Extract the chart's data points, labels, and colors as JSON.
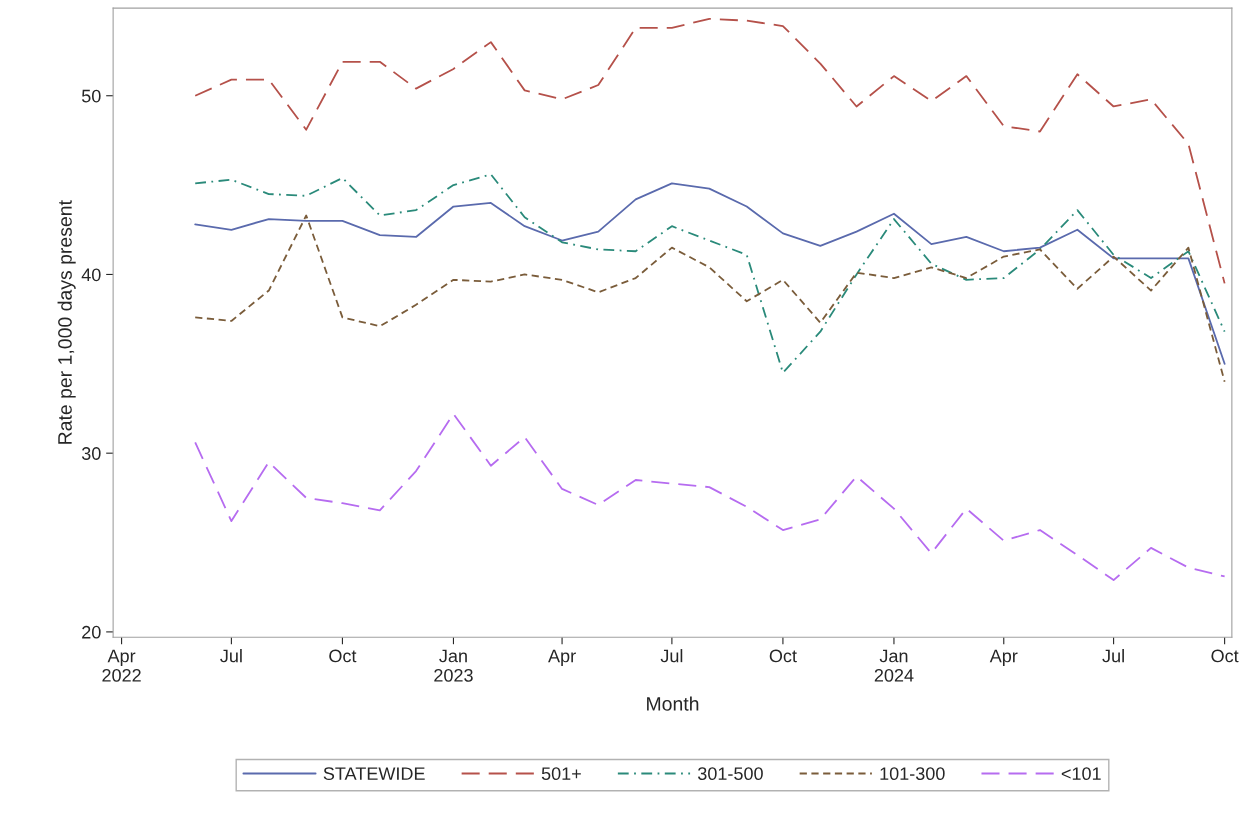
{
  "chart_data": {
    "type": "line",
    "xlabel": "Month",
    "ylabel": "Rate per 1,000 days present",
    "x": [
      "2022-06",
      "2022-07",
      "2022-08",
      "2022-09",
      "2022-10",
      "2022-11",
      "2022-12",
      "2023-01",
      "2023-02",
      "2023-03",
      "2023-04",
      "2023-05",
      "2023-06",
      "2023-07",
      "2023-08",
      "2023-09",
      "2023-10",
      "2023-11",
      "2023-12",
      "2024-01",
      "2024-02",
      "2024-03",
      "2024-04",
      "2024-05",
      "2024-06",
      "2024-07",
      "2024-08",
      "2024-09",
      "2024-10"
    ],
    "series": [
      {
        "name": "STATEWIDE",
        "color": "#5a6aad",
        "line_style": "solid",
        "values": [
          42.8,
          42.5,
          43.1,
          43.0,
          43.0,
          42.2,
          42.1,
          43.8,
          44.0,
          42.7,
          41.9,
          42.4,
          44.2,
          45.1,
          44.8,
          43.8,
          42.3,
          41.6,
          42.4,
          43.4,
          41.7,
          42.1,
          41.3,
          41.5,
          42.5,
          40.9,
          40.9,
          40.9,
          35.0
        ]
      },
      {
        "name": "501+",
        "color": "#b5514a",
        "line_style": "dashed",
        "values": [
          50.0,
          50.9,
          50.9,
          48.1,
          51.9,
          51.9,
          50.4,
          51.5,
          53.0,
          50.3,
          49.8,
          50.6,
          53.8,
          53.8,
          54.3,
          54.2,
          53.9,
          51.8,
          49.4,
          51.1,
          49.7,
          51.1,
          48.3,
          48.0,
          51.2,
          49.4,
          49.8,
          47.3,
          39.5
        ]
      },
      {
        "name": "301-500",
        "color": "#2a8a7a",
        "line_style": "dashdot",
        "values": [
          45.1,
          45.3,
          44.5,
          44.4,
          45.4,
          43.3,
          43.6,
          45.0,
          45.6,
          43.2,
          41.8,
          41.4,
          41.3,
          42.7,
          41.9,
          41.1,
          34.5,
          36.8,
          40.0,
          43.1,
          40.6,
          39.7,
          39.8,
          41.4,
          43.6,
          41.1,
          39.8,
          41.3,
          36.8
        ]
      },
      {
        "name": "101-300",
        "color": "#7a5c3a",
        "line_style": "dotted",
        "values": [
          37.6,
          37.4,
          39.1,
          43.3,
          37.6,
          37.1,
          38.3,
          39.7,
          39.6,
          40.0,
          39.7,
          39.0,
          39.8,
          41.5,
          40.4,
          38.5,
          39.7,
          37.3,
          40.1,
          39.8,
          40.4,
          39.8,
          41.0,
          41.4,
          39.2,
          41.0,
          39.1,
          41.5,
          34.0
        ]
      },
      {
        "name": "<101",
        "color": "#b66cf0",
        "line_style": "dashed",
        "values": [
          30.6,
          26.2,
          29.5,
          27.5,
          27.2,
          26.8,
          29.0,
          32.2,
          29.3,
          30.9,
          28.0,
          27.1,
          28.5,
          28.3,
          28.1,
          27.0,
          25.7,
          26.3,
          28.7,
          26.9,
          24.4,
          26.9,
          25.1,
          25.7,
          24.3,
          22.9,
          24.7,
          23.6,
          23.1
        ]
      }
    ],
    "xlim": [
      "2022-03-25",
      "2024-10-07"
    ],
    "xticks": [
      {
        "value": "2022-04",
        "label": "Apr\n2022"
      },
      {
        "value": "2022-07",
        "label": "Jul"
      },
      {
        "value": "2022-10",
        "label": "Oct"
      },
      {
        "value": "2023-01",
        "label": "Jan\n2023"
      },
      {
        "value": "2023-04",
        "label": "Apr"
      },
      {
        "value": "2023-07",
        "label": "Jul"
      },
      {
        "value": "2023-10",
        "label": "Oct"
      },
      {
        "value": "2024-01",
        "label": "Jan\n2024"
      },
      {
        "value": "2024-04",
        "label": "Apr"
      },
      {
        "value": "2024-07",
        "label": "Jul"
      },
      {
        "value": "2024-10",
        "label": "Oct"
      }
    ],
    "ylim": [
      19.7,
      54.9
    ],
    "yticks": [
      20,
      30,
      40,
      50
    ],
    "grid": false,
    "legend": "bottom",
    "marker": "none"
  }
}
